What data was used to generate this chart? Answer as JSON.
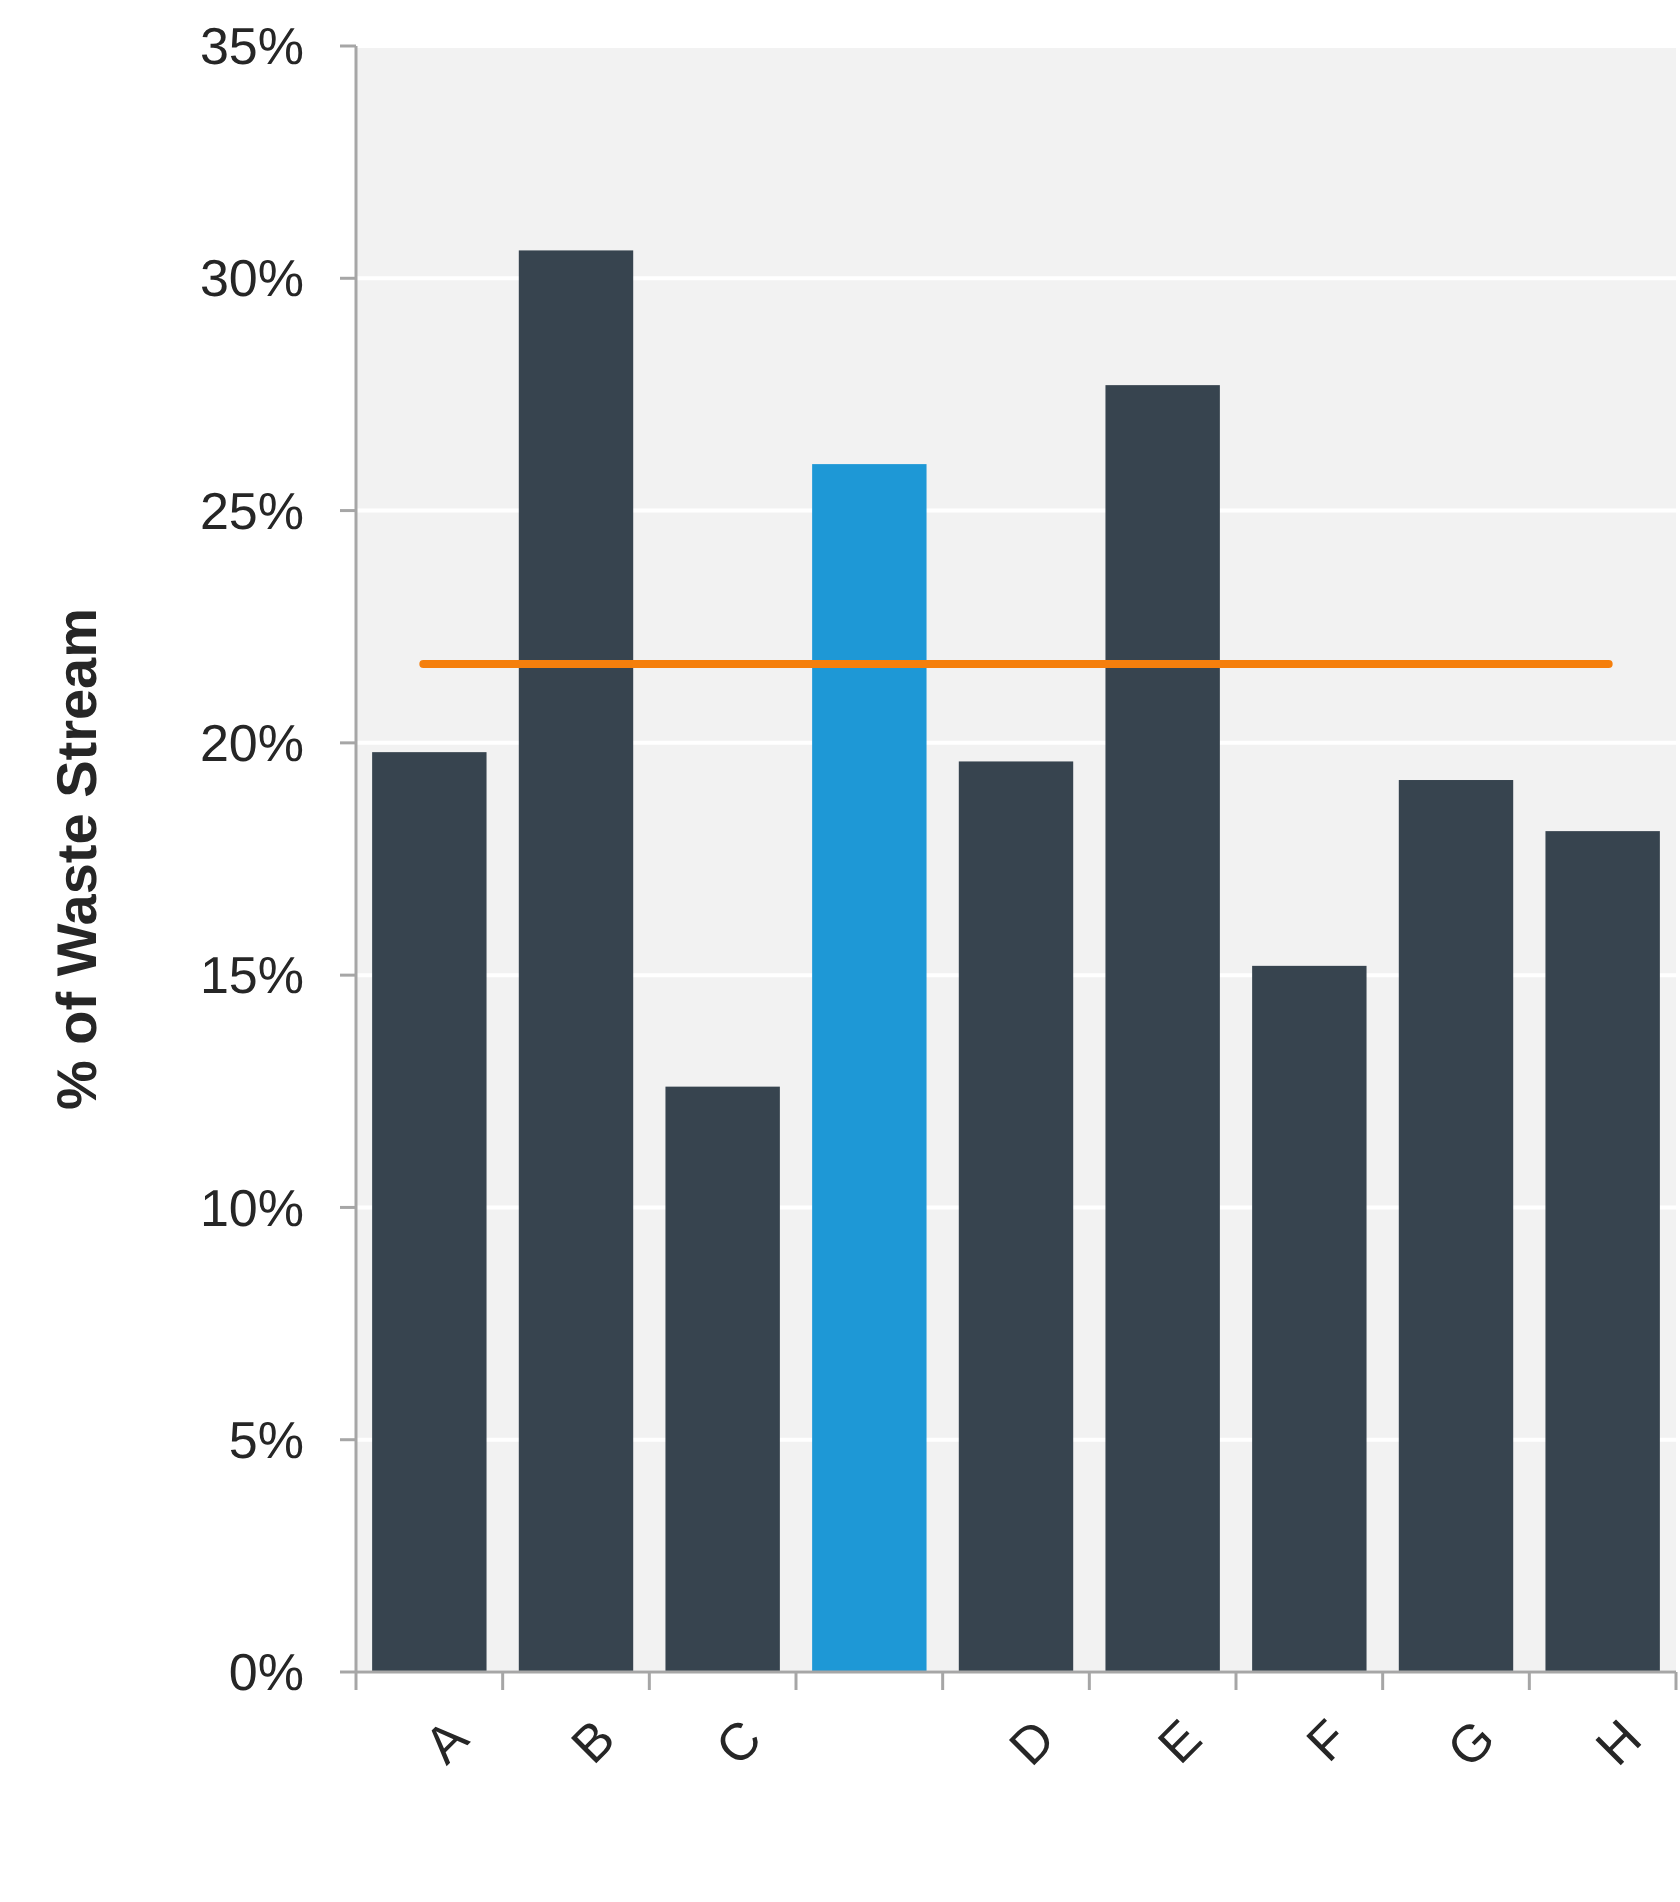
{
  "chart_data": {
    "type": "bar",
    "ylabel": "% of Waste Stream",
    "categories": [
      "A",
      "B",
      "C",
      null,
      "D",
      "E",
      "F",
      "G",
      "H"
    ],
    "values": [
      19.8,
      30.6,
      12.6,
      26.0,
      19.6,
      27.7,
      15.2,
      19.2,
      18.1
    ],
    "colors": [
      "#37444f",
      "#37444f",
      "#37444f",
      "#1e98d6",
      "#37444f",
      "#37444f",
      "#37444f",
      "#37444f",
      "#37444f"
    ],
    "ylim": [
      0,
      35
    ],
    "yticks": [
      {
        "value": 0,
        "label": "0%"
      },
      {
        "value": 5,
        "label": "5%"
      },
      {
        "value": 10,
        "label": "10%"
      },
      {
        "value": 15,
        "label": "15%"
      },
      {
        "value": 20,
        "label": "20%"
      },
      {
        "value": 25,
        "label": "25%"
      },
      {
        "value": 30,
        "label": "30%"
      },
      {
        "value": 35,
        "label": "35%"
      }
    ],
    "grid": "y",
    "ref_lines": [
      {
        "axis": "y",
        "value": 21.7,
        "color": "#f57f0c"
      }
    ]
  }
}
